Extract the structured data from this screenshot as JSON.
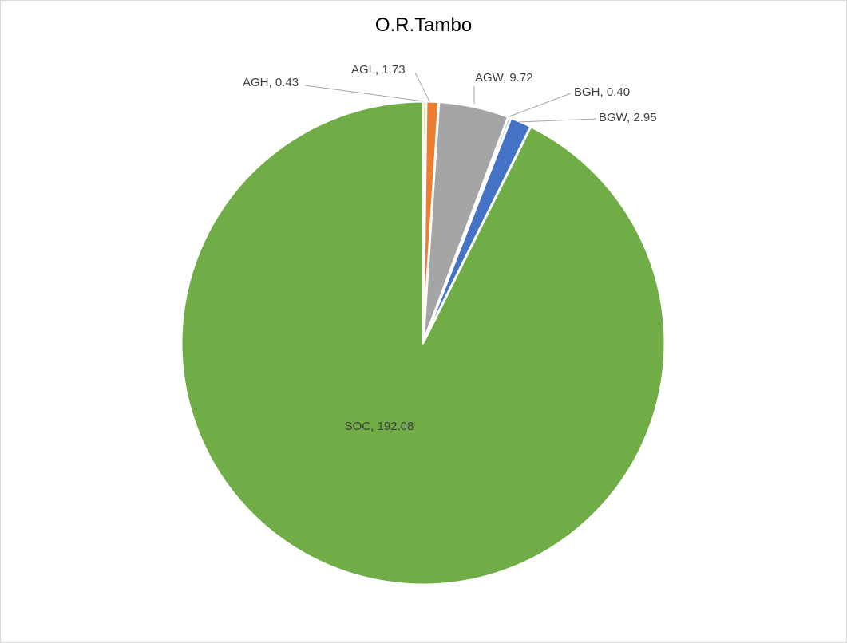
{
  "chart_data": {
    "type": "pie",
    "title": "O.R.Tambo",
    "slices": [
      {
        "name": "AGH",
        "value": 0.43,
        "label": "AGH, 0.43",
        "color": "#ffc000"
      },
      {
        "name": "AGL",
        "value": 1.73,
        "label": "AGL, 1.73",
        "color": "#ed7d31"
      },
      {
        "name": "AGW",
        "value": 9.72,
        "label": "AGW, 9.72",
        "color": "#a5a5a5"
      },
      {
        "name": "BGH",
        "value": 0.4,
        "label": "BGH, 0.40",
        "color": "#5b9bd5"
      },
      {
        "name": "BGW",
        "value": 2.95,
        "label": "BGW, 2.95",
        "color": "#4472c4"
      },
      {
        "name": "SOC",
        "value": 192.08,
        "label": "SOC, 192.08",
        "color": "#70ad47"
      }
    ],
    "start_angle": "12 o'clock",
    "direction": "clockwise",
    "legend": "none"
  }
}
